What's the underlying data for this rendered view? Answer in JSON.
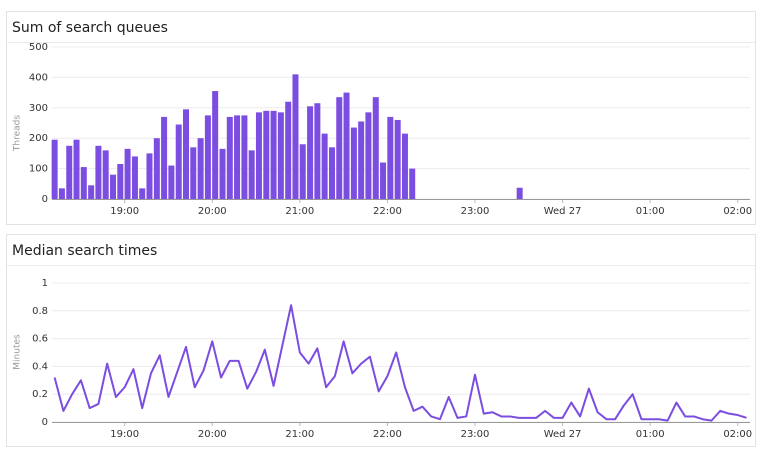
{
  "chart_data": [
    {
      "type": "bar",
      "title": "Sum of search queues",
      "y_label": "Threads",
      "color": "#7b4de0",
      "grid": true,
      "x": [
        18.2,
        18.283,
        18.367,
        18.45,
        18.533,
        18.617,
        18.7,
        18.783,
        18.867,
        18.95,
        19.033,
        19.117,
        19.2,
        19.283,
        19.367,
        19.45,
        19.533,
        19.617,
        19.7,
        19.783,
        19.867,
        19.95,
        20.033,
        20.117,
        20.2,
        20.283,
        20.367,
        20.45,
        20.533,
        20.617,
        20.7,
        20.783,
        20.867,
        20.95,
        21.033,
        21.117,
        21.2,
        21.283,
        21.367,
        21.45,
        21.533,
        21.617,
        21.7,
        21.783,
        21.867,
        21.95,
        22.033,
        22.117,
        22.2,
        22.283,
        23.51
      ],
      "values": [
        195,
        35,
        175,
        195,
        105,
        45,
        175,
        160,
        80,
        115,
        165,
        140,
        35,
        150,
        200,
        270,
        110,
        245,
        295,
        170,
        200,
        275,
        355,
        165,
        270,
        275,
        275,
        160,
        285,
        290,
        290,
        285,
        320,
        410,
        180,
        305,
        315,
        215,
        170,
        335,
        350,
        235,
        255,
        285,
        335,
        120,
        270,
        260,
        215,
        100,
        37
      ],
      "xlim": [
        18.17,
        26.14
      ],
      "xticks": [
        {
          "value": 19,
          "label": "19:00"
        },
        {
          "value": 20,
          "label": "20:00"
        },
        {
          "value": 21,
          "label": "21:00"
        },
        {
          "value": 22,
          "label": "22:00"
        },
        {
          "value": 23,
          "label": "23:00"
        },
        {
          "value": 24,
          "label": "Wed 27"
        },
        {
          "value": 25,
          "label": "01:00"
        },
        {
          "value": 26,
          "label": "02:00"
        }
      ],
      "ylim": [
        0,
        500
      ],
      "yticks": [
        0,
        100,
        200,
        300,
        400,
        500
      ]
    },
    {
      "type": "line",
      "title": "Median search times",
      "y_label": "Minutes",
      "color": "#7b4de0",
      "grid": true,
      "x": [
        18.2,
        18.3,
        18.4,
        18.5,
        18.6,
        18.7,
        18.8,
        18.9,
        19.0,
        19.1,
        19.2,
        19.3,
        19.4,
        19.5,
        19.6,
        19.7,
        19.8,
        19.9,
        20.0,
        20.1,
        20.2,
        20.3,
        20.4,
        20.5,
        20.6,
        20.7,
        20.8,
        20.9,
        21.0,
        21.1,
        21.2,
        21.3,
        21.4,
        21.5,
        21.6,
        21.7,
        21.8,
        21.9,
        22.0,
        22.1,
        22.2,
        22.3,
        22.4,
        22.5,
        22.6,
        22.7,
        22.8,
        22.9,
        23.0,
        23.1,
        23.2,
        23.3,
        23.4,
        23.5,
        23.6,
        23.7,
        23.8,
        23.9,
        24.0,
        24.1,
        24.2,
        24.3,
        24.4,
        24.5,
        24.6,
        24.7,
        24.8,
        24.9,
        25.0,
        25.1,
        25.2,
        25.3,
        25.4,
        25.5,
        25.6,
        25.7,
        25.8,
        25.9,
        26.0,
        26.1
      ],
      "values": [
        0.32,
        0.08,
        0.2,
        0.3,
        0.1,
        0.13,
        0.42,
        0.18,
        0.25,
        0.38,
        0.1,
        0.35,
        0.48,
        0.18,
        0.36,
        0.54,
        0.25,
        0.37,
        0.58,
        0.32,
        0.44,
        0.44,
        0.24,
        0.36,
        0.52,
        0.26,
        0.55,
        0.84,
        0.5,
        0.42,
        0.53,
        0.25,
        0.33,
        0.58,
        0.35,
        0.42,
        0.47,
        0.22,
        0.33,
        0.5,
        0.25,
        0.08,
        0.11,
        0.04,
        0.02,
        0.18,
        0.03,
        0.04,
        0.34,
        0.06,
        0.07,
        0.04,
        0.04,
        0.03,
        0.03,
        0.03,
        0.08,
        0.03,
        0.03,
        0.14,
        0.04,
        0.24,
        0.07,
        0.02,
        0.02,
        0.12,
        0.2,
        0.02,
        0.02,
        0.02,
        0.01,
        0.14,
        0.04,
        0.04,
        0.02,
        0.01,
        0.08,
        0.06,
        0.05,
        0.03
      ],
      "xlim": [
        18.17,
        26.14
      ],
      "xticks": [
        {
          "value": 19,
          "label": "19:00"
        },
        {
          "value": 20,
          "label": "20:00"
        },
        {
          "value": 21,
          "label": "21:00"
        },
        {
          "value": 22,
          "label": "22:00"
        },
        {
          "value": 23,
          "label": "23:00"
        },
        {
          "value": 24,
          "label": "Wed 27"
        },
        {
          "value": 25,
          "label": "01:00"
        },
        {
          "value": 26,
          "label": "02:00"
        }
      ],
      "ylim": [
        0,
        1
      ],
      "yticks": [
        0,
        0.2,
        0.4,
        0.6,
        0.8,
        1
      ]
    }
  ]
}
